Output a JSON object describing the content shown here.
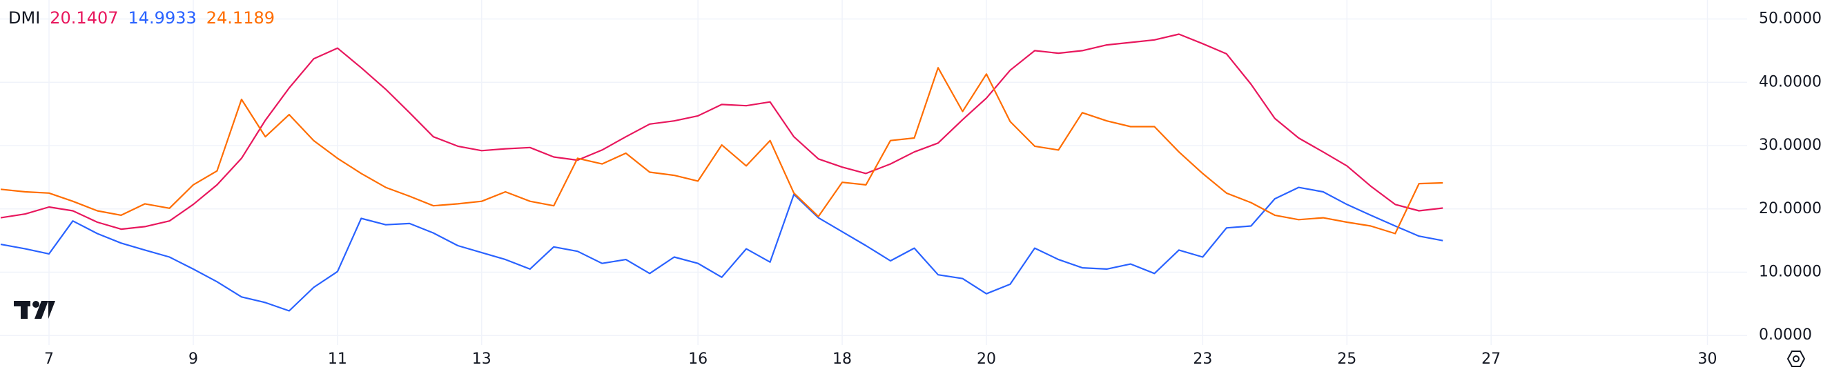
{
  "chart_data": {
    "type": "line",
    "title": "DMI",
    "x": [
      6.33,
      6.67,
      7,
      7.33,
      7.67,
      8,
      8.33,
      8.67,
      9,
      9.33,
      9.67,
      10,
      10.33,
      10.67,
      11,
      11.33,
      11.67,
      12,
      12.33,
      12.67,
      13,
      13.33,
      13.67,
      14,
      14.33,
      14.67,
      15,
      15.33,
      15.67,
      16,
      16.33,
      16.67,
      17,
      17.33,
      17.67,
      18,
      18.33,
      18.67,
      19,
      19.33,
      19.67,
      20,
      20.33,
      20.67,
      21,
      21.33,
      21.67,
      22,
      22.33,
      22.67,
      23,
      23.33,
      23.67,
      24,
      24.33,
      24.67,
      25,
      25.33,
      25.67,
      26,
      26.33
    ],
    "series": [
      {
        "color": "#e8175d",
        "values": [
          18.6,
          19.2,
          20.3,
          19.7,
          17.9,
          16.8,
          17.2,
          18.1,
          20.7,
          23.8,
          28.0,
          34.0,
          39.1,
          43.7,
          45.4,
          42.3,
          38.9,
          35.2,
          31.4,
          29.9,
          29.2,
          29.5,
          29.7,
          28.2,
          27.7,
          29.3,
          31.4,
          33.4,
          33.9,
          34.7,
          36.5,
          36.3,
          36.9,
          31.4,
          27.9,
          26.6,
          25.6,
          27.1,
          29.0,
          30.4,
          34.1,
          37.5,
          41.9,
          45.0,
          44.6,
          45.0,
          45.9,
          46.3,
          46.7,
          47.6,
          46.1,
          44.5,
          39.7,
          34.3,
          31.2,
          29.0,
          26.8,
          23.6,
          20.7,
          19.7,
          20.1407
        ]
      },
      {
        "color": "#2962ff",
        "values": [
          14.4,
          13.7,
          12.9,
          18.1,
          16.1,
          14.6,
          13.5,
          12.4,
          10.5,
          8.5,
          6.1,
          5.2,
          3.9,
          7.6,
          10.1,
          18.5,
          17.5,
          17.7,
          16.2,
          14.2,
          13.1,
          12.0,
          10.5,
          14.0,
          13.3,
          11.4,
          12.0,
          9.8,
          12.4,
          11.4,
          9.2,
          13.7,
          11.6,
          22.3,
          18.6,
          16.4,
          14.2,
          11.8,
          13.8,
          9.6,
          9.0,
          6.6,
          8.1,
          13.8,
          12.0,
          10.7,
          10.5,
          11.3,
          9.8,
          13.5,
          12.4,
          17.0,
          17.3,
          21.6,
          23.4,
          22.7,
          20.7,
          19.0,
          17.3,
          15.7,
          14.9933
        ]
      },
      {
        "color": "#ff6d00",
        "values": [
          23.1,
          22.7,
          22.5,
          21.2,
          19.7,
          19.0,
          20.8,
          20.1,
          23.8,
          26.0,
          37.3,
          31.4,
          34.9,
          30.8,
          28.0,
          25.6,
          23.4,
          22.0,
          20.5,
          20.8,
          21.2,
          22.7,
          21.2,
          20.5,
          28.0,
          27.1,
          28.8,
          25.8,
          25.3,
          24.4,
          30.1,
          26.8,
          30.8,
          22.5,
          18.8,
          24.2,
          23.8,
          30.8,
          31.2,
          42.3,
          35.4,
          41.3,
          33.8,
          29.9,
          29.3,
          35.2,
          33.9,
          33.0,
          33.0,
          29.0,
          25.6,
          22.5,
          21.0,
          19.0,
          18.3,
          18.6,
          17.9,
          17.3,
          16.1,
          24.0,
          24.1189
        ]
      }
    ],
    "xlim": [
      6.32,
      30.55
    ],
    "xticks": [
      7,
      9,
      11,
      13,
      16,
      18,
      20,
      23,
      25,
      27,
      30
    ],
    "ylim": [
      -1.5,
      53
    ],
    "yticks": [
      {
        "value": 0,
        "label": "0.0000"
      },
      {
        "value": 10,
        "label": "10.0000"
      },
      {
        "value": 20,
        "label": "20.0000"
      },
      {
        "value": 30,
        "label": "30.0000"
      },
      {
        "value": 40,
        "label": "40.0000"
      },
      {
        "value": 50,
        "label": "50.0000"
      }
    ],
    "grid": true
  }
}
